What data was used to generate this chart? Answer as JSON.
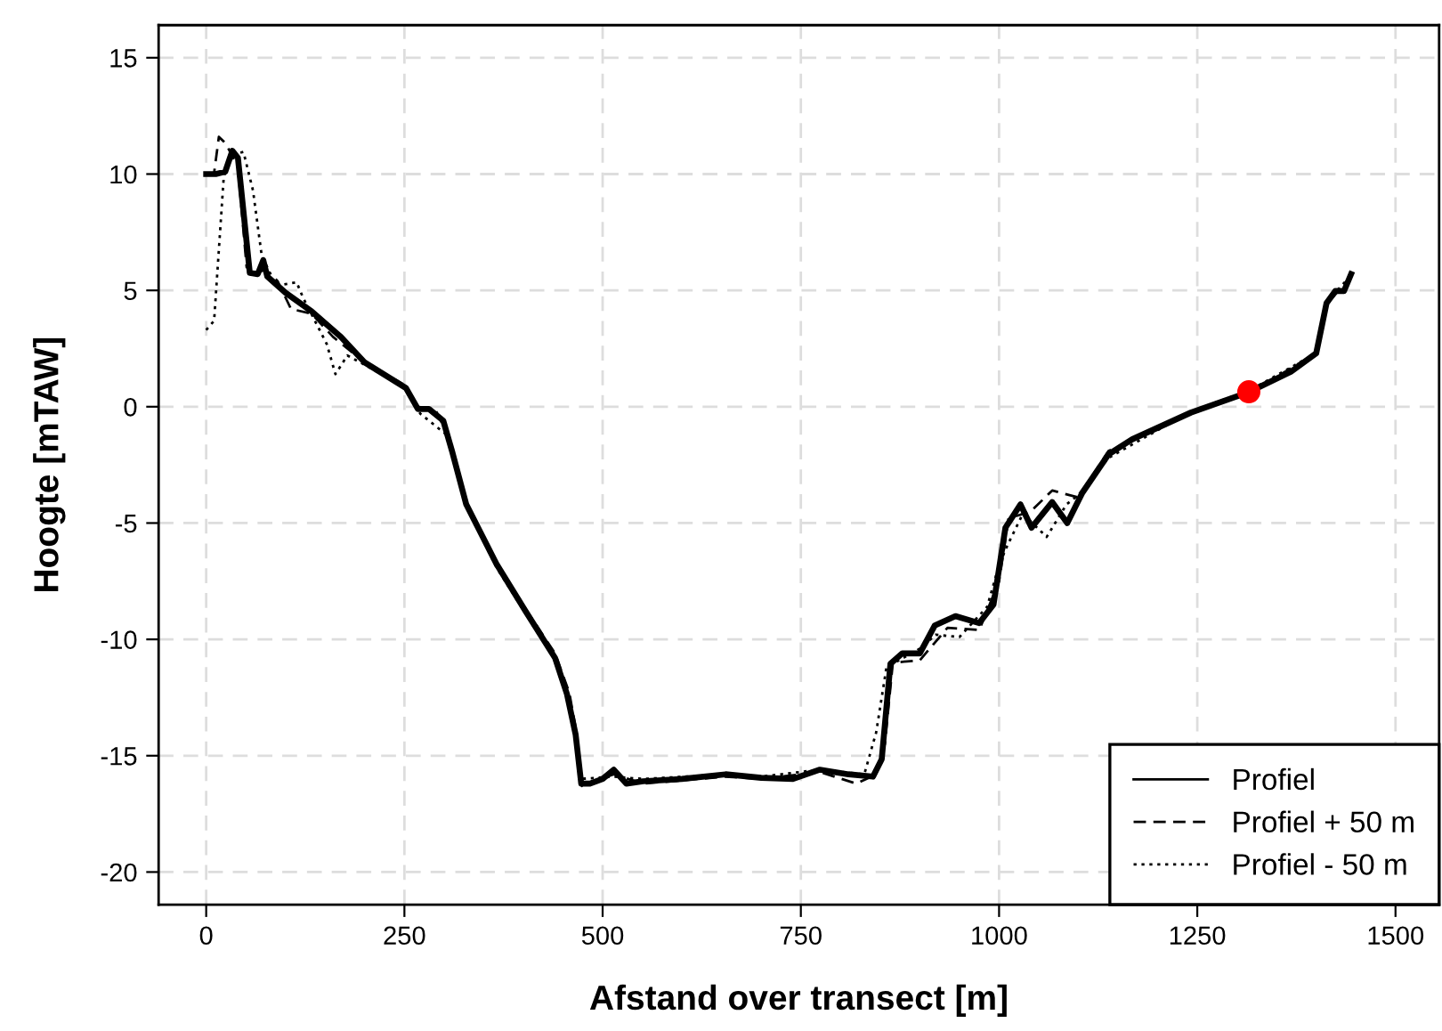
{
  "chart_data": {
    "type": "line",
    "xlabel": "Afstand over transect [m]",
    "ylabel": "Hoogte [mTAW]",
    "xlim": [
      -60,
      1555
    ],
    "ylim": [
      -21.4,
      16.4
    ],
    "xticks": [
      0,
      250,
      500,
      750,
      1000,
      1250,
      1500
    ],
    "yticks": [
      -20,
      -15,
      -10,
      -5,
      0,
      5,
      10,
      15
    ],
    "grid": true,
    "legend": "bottom right",
    "series": [
      {
        "name": "Profiel",
        "color": "#000000",
        "line_style": "solid",
        "x": [
          0,
          12,
          24,
          33,
          40,
          55,
          65,
          72,
          77,
          100,
          133,
          170,
          200,
          252,
          267,
          281,
          299,
          310,
          328,
          366,
          403,
          440,
          455,
          466,
          473,
          484,
          500,
          514,
          530,
          551,
          600,
          655,
          700,
          740,
          774,
          810,
          841,
          852,
          863,
          878,
          900,
          919,
          945,
          975,
          993,
          1008,
          1027,
          1041,
          1067,
          1086,
          1105,
          1138,
          1168,
          1242,
          1316,
          1368,
          1400,
          1413,
          1424,
          1435,
          1444
        ],
        "values": [
          10.0,
          10.0,
          10.1,
          11.0,
          10.7,
          5.75,
          5.7,
          6.3,
          5.6,
          4.9,
          4.1,
          3.0,
          1.9,
          0.8,
          -0.1,
          -0.1,
          -0.6,
          -1.9,
          -4.2,
          -6.75,
          -8.8,
          -10.8,
          -12.35,
          -14.1,
          -16.2,
          -16.2,
          -16.0,
          -15.6,
          -16.2,
          -16.1,
          -16.0,
          -15.8,
          -15.95,
          -16.0,
          -15.6,
          -15.8,
          -15.9,
          -15.15,
          -11.05,
          -10.6,
          -10.6,
          -9.4,
          -9.0,
          -9.3,
          -8.5,
          -5.2,
          -4.2,
          -5.2,
          -4.1,
          -5.0,
          -3.7,
          -2.05,
          -1.4,
          -0.25,
          0.64,
          1.5,
          2.3,
          4.45,
          4.97,
          4.97,
          5.7
        ]
      },
      {
        "name": "Profiel + 50 m",
        "color": "#000000",
        "line_style": "dashed",
        "x": [
          0,
          10,
          16,
          25,
          40,
          51,
          60,
          75,
          90,
          107,
          133,
          160,
          200,
          252,
          267,
          290,
          303,
          328,
          366,
          403,
          440,
          458,
          467,
          474,
          514,
          551,
          655,
          700,
          774,
          820,
          845,
          856,
          866,
          900,
          935,
          975,
          1000,
          1012,
          1040,
          1067,
          1100,
          1138,
          1242,
          1316,
          1400,
          1413,
          1444
        ],
        "values": [
          10.0,
          10.05,
          11.6,
          11.3,
          10.3,
          6.0,
          5.7,
          5.9,
          5.4,
          4.2,
          4.0,
          3.0,
          1.9,
          0.9,
          0.0,
          -0.2,
          -1.1,
          -4.2,
          -6.7,
          -8.7,
          -10.6,
          -12.3,
          -14.0,
          -16.3,
          -15.8,
          -16.2,
          -15.9,
          -16.0,
          -15.7,
          -16.2,
          -15.8,
          -14.5,
          -11.0,
          -10.9,
          -9.5,
          -9.6,
          -7.5,
          -4.8,
          -4.5,
          -3.6,
          -3.9,
          -1.9,
          -0.3,
          0.6,
          2.3,
          4.4,
          5.6
        ]
      },
      {
        "name": "Profiel - 50 m",
        "color": "#000000",
        "line_style": "dotted",
        "x": [
          0,
          10,
          22,
          29,
          47,
          59,
          70,
          88,
          114,
          122,
          152,
          163,
          178,
          200,
          252,
          270,
          303,
          330,
          366,
          403,
          440,
          455,
          466,
          472,
          514,
          551,
          655,
          700,
          774,
          830,
          845,
          858,
          900,
          920,
          950,
          985,
          1000,
          1010,
          1030,
          1060,
          1085,
          1100,
          1138,
          1242,
          1316,
          1400,
          1413,
          1440
        ],
        "values": [
          3.3,
          3.7,
          9.8,
          10.8,
          10.95,
          9.3,
          6.5,
          5.2,
          5.35,
          4.7,
          2.7,
          1.4,
          2.2,
          1.8,
          0.8,
          -0.3,
          -1.2,
          -4.4,
          -6.9,
          -8.9,
          -10.9,
          -12.5,
          -14.3,
          -16.0,
          -15.9,
          -16.0,
          -15.8,
          -15.9,
          -15.6,
          -15.8,
          -14.0,
          -11.2,
          -10.4,
          -9.8,
          -9.9,
          -8.6,
          -6.8,
          -6.0,
          -4.6,
          -5.6,
          -4.2,
          -3.8,
          -2.2,
          -0.2,
          0.7,
          2.3,
          4.5,
          5.5
        ]
      },
      {
        "type": "scatter",
        "color": "#ff0000",
        "marker": "circle",
        "x": [
          1315
        ],
        "values": [
          0.64
        ]
      }
    ]
  }
}
